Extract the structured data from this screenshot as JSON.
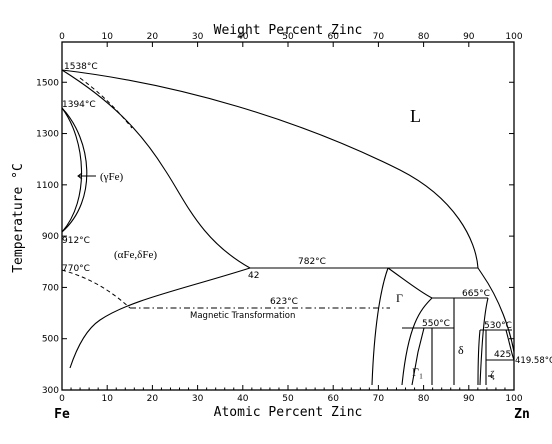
{
  "diagram": {
    "top_axis_title": "Weight Percent Zinc",
    "bottom_axis_title": "Atomic Percent Zinc",
    "y_axis_title": "Temperature °C",
    "left_element": "Fe",
    "right_element": "Zn",
    "x_ticks": [
      "0",
      "10",
      "20",
      "30",
      "40",
      "50",
      "60",
      "70",
      "80",
      "90",
      "100"
    ],
    "top_ticks": [
      "0",
      "10",
      "20",
      "30",
      "40",
      "50",
      "60",
      "70",
      "80",
      "90",
      "100"
    ],
    "y_ticks": [
      "300",
      "500",
      "700",
      "900",
      "1100",
      "1300",
      "1500"
    ],
    "labels": {
      "t1538": "1538°C",
      "t1394": "1394°C",
      "t912": "912°C",
      "t770": "770°C",
      "gamma_fe": "(γFe)",
      "alpha_delta_fe": "(αFe,δFe)",
      "liquid": "L",
      "comp42": "42",
      "t782": "782°C",
      "t623": "623°C",
      "magnetic": "Magnetic Transformation",
      "gamma_phase": "Γ",
      "gamma1_phase": "Γ₁",
      "t665": "665°C",
      "t550": "550°C",
      "t530": "530°C",
      "delta_phase": "δ",
      "zeta_phase": "ζ",
      "comp425": "425",
      "t41958": "419.58°C"
    }
  }
}
